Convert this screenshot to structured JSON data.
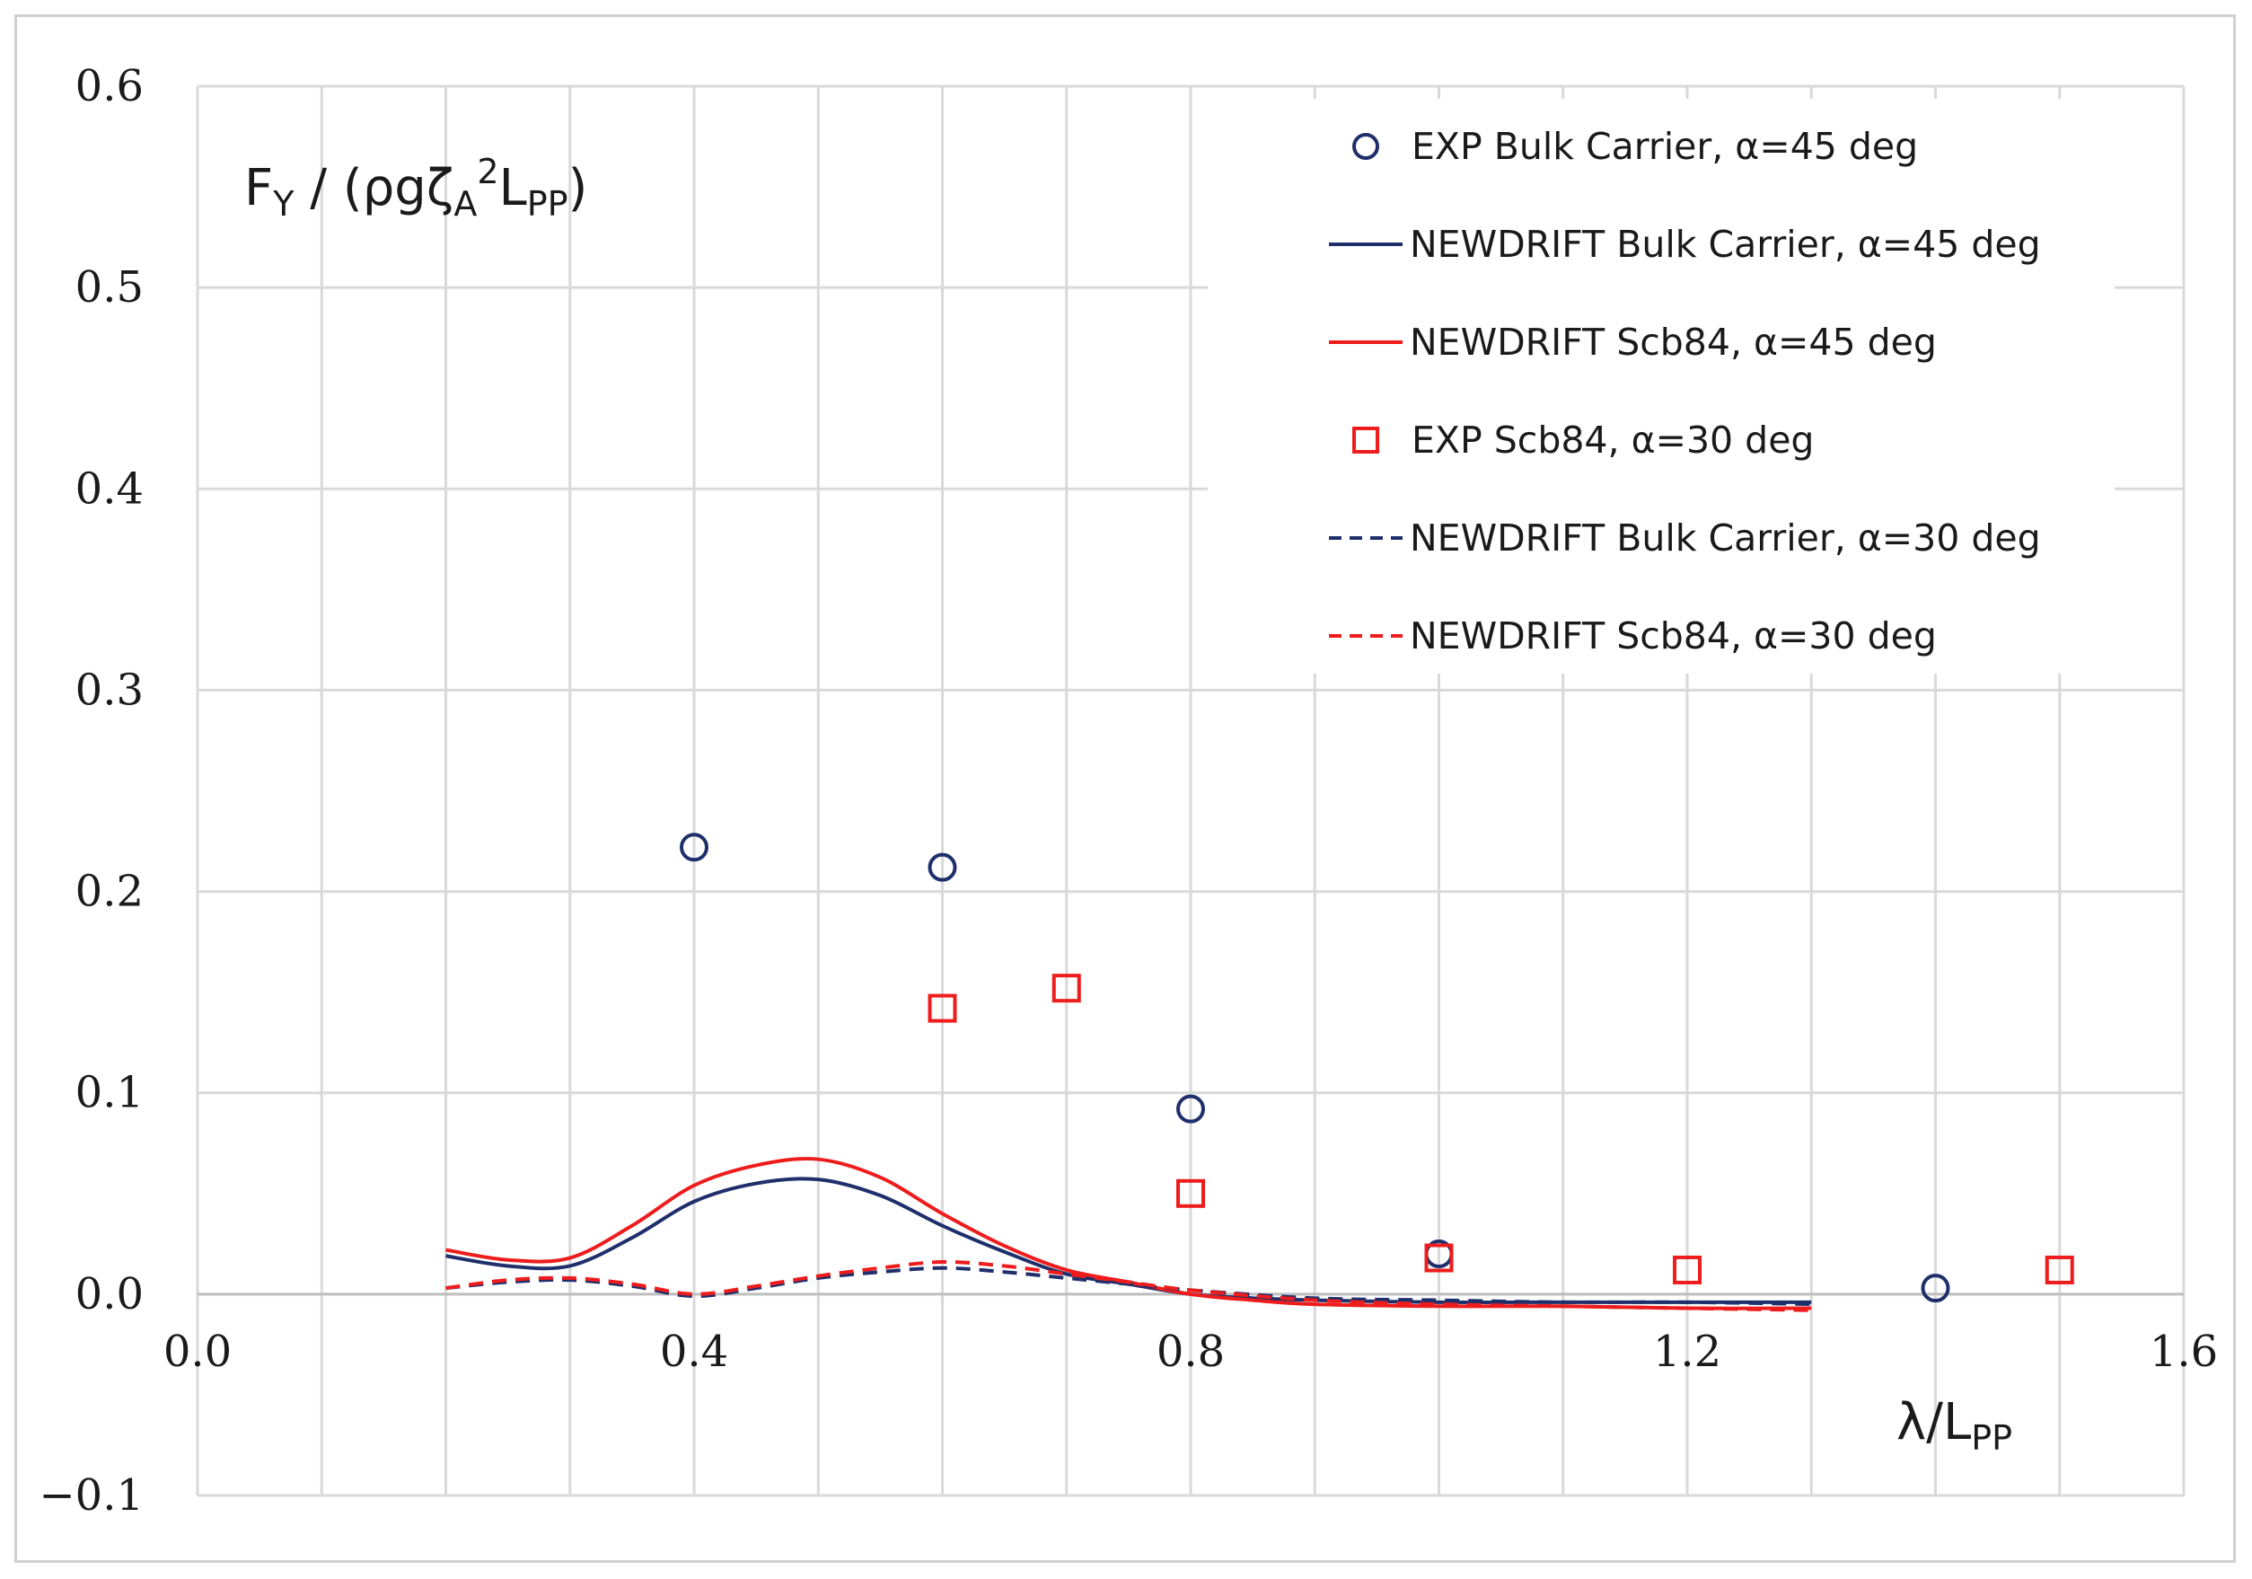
{
  "chart_data": {
    "type": "line",
    "ylabel": "F Y / (ρgζA²LPP)",
    "ylabel_parts": {
      "main": "F",
      "sub": "Y",
      "rest": " / (ρgζ",
      "sub2": "A",
      "sup": "2",
      "rest2": "L",
      "sub3": "PP",
      "close": ")"
    },
    "xlabel": "λ/LPP",
    "xlabel_parts": {
      "main": "λ/L",
      "sub": "PP"
    },
    "xlim": [
      0.0,
      1.6
    ],
    "ylim": [
      -0.1,
      0.6
    ],
    "x_ticks": [
      "0.0",
      "0.4",
      "0.8",
      "1.2",
      "1.6"
    ],
    "y_ticks": [
      "0.6",
      "0.5",
      "0.4",
      "0.3",
      "0.2",
      "0.1",
      "0.0",
      "−0.1"
    ],
    "grid": true,
    "legend_position": "top-right",
    "colors": {
      "navy": "#1f2f6b",
      "red": "#ee1c1c",
      "grid": "#d9d9d9",
      "axis": "#bfbfbf"
    },
    "series": [
      {
        "name": "EXP Bulk Carrier, α=45 deg",
        "style": "circle-marker",
        "color": "#1f2f6b",
        "x": [
          0.4,
          0.6,
          0.8,
          1.0,
          1.4
        ],
        "y": [
          0.222,
          0.212,
          0.092,
          0.02,
          0.003
        ]
      },
      {
        "name": "NEWDRIFT Bulk Carrier,  α=45 deg",
        "style": "solid-line",
        "color": "#1f2f6b",
        "x": [
          0.2,
          0.25,
          0.3,
          0.35,
          0.4,
          0.45,
          0.5,
          0.55,
          0.6,
          0.65,
          0.7,
          0.75,
          0.8,
          0.85,
          0.9,
          1.0,
          1.1,
          1.2,
          1.3
        ],
        "y": [
          0.019,
          0.014,
          0.014,
          0.028,
          0.046,
          0.055,
          0.057,
          0.049,
          0.034,
          0.021,
          0.01,
          0.005,
          0.0,
          -0.002,
          -0.003,
          -0.004,
          -0.004,
          -0.004,
          -0.004
        ]
      },
      {
        "name": "NEWDRIFT Scb84, α=45 deg",
        "style": "solid-line",
        "color": "#ee1c1c",
        "x": [
          0.2,
          0.25,
          0.3,
          0.35,
          0.4,
          0.45,
          0.5,
          0.55,
          0.6,
          0.65,
          0.7,
          0.75,
          0.8,
          0.85,
          0.9,
          1.0,
          1.1,
          1.2,
          1.3
        ],
        "y": [
          0.022,
          0.017,
          0.018,
          0.034,
          0.054,
          0.064,
          0.067,
          0.058,
          0.04,
          0.024,
          0.012,
          0.006,
          0.0,
          -0.003,
          -0.005,
          -0.006,
          -0.006,
          -0.007,
          -0.007
        ]
      },
      {
        "name": "EXP Scb84, α=30 deg",
        "style": "square-marker",
        "color": "#ee1c1c",
        "x": [
          0.6,
          0.7,
          0.8,
          1.0,
          1.2,
          1.5
        ],
        "y": [
          0.142,
          0.152,
          0.05,
          0.018,
          0.012,
          0.012
        ]
      },
      {
        "name": "NEWDRIFT Bulk Carrier, α=30 deg",
        "style": "dashed-line",
        "color": "#1f2f6b",
        "x": [
          0.2,
          0.25,
          0.3,
          0.35,
          0.4,
          0.45,
          0.5,
          0.55,
          0.6,
          0.65,
          0.7,
          0.75,
          0.8,
          0.9,
          1.0,
          1.1,
          1.2,
          1.3
        ],
        "y": [
          0.003,
          0.006,
          0.007,
          0.004,
          -0.001,
          0.003,
          0.008,
          0.011,
          0.013,
          0.011,
          0.008,
          0.005,
          0.002,
          -0.002,
          -0.003,
          -0.004,
          -0.004,
          -0.005
        ]
      },
      {
        "name": "NEWDRIFT Scb84, α=30 deg",
        "style": "dashed-line",
        "color": "#ee1c1c",
        "x": [
          0.2,
          0.25,
          0.3,
          0.35,
          0.4,
          0.45,
          0.5,
          0.55,
          0.6,
          0.65,
          0.7,
          0.75,
          0.8,
          0.9,
          1.0,
          1.1,
          1.2,
          1.3
        ],
        "y": [
          0.003,
          0.007,
          0.008,
          0.005,
          0.0,
          0.004,
          0.009,
          0.013,
          0.016,
          0.014,
          0.01,
          0.006,
          0.002,
          -0.003,
          -0.005,
          -0.006,
          -0.007,
          -0.008
        ]
      }
    ]
  }
}
